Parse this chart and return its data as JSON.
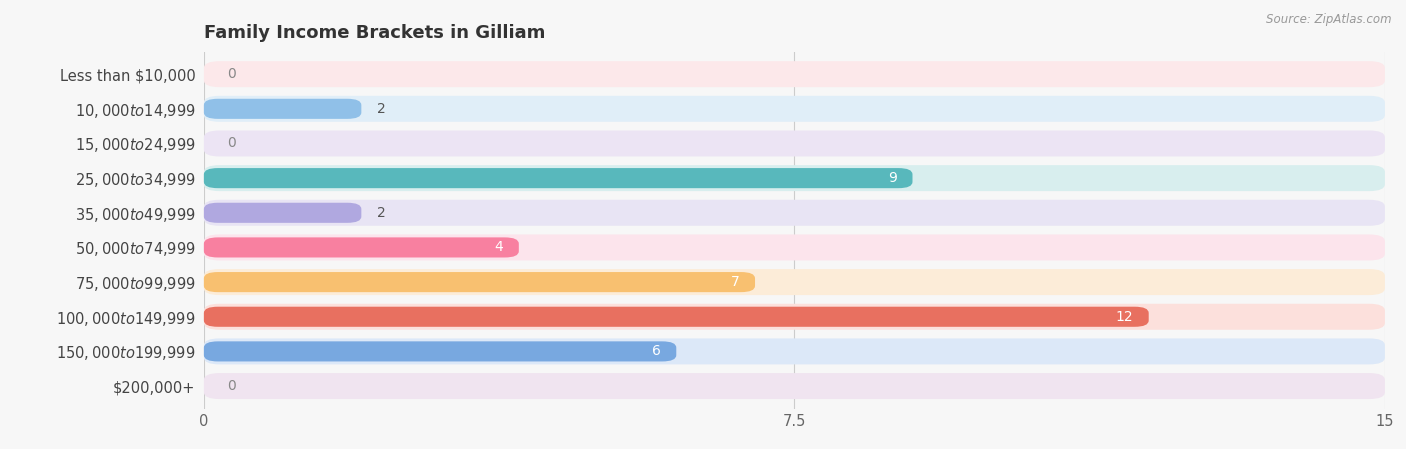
{
  "title": "Family Income Brackets in Gilliam",
  "source": "Source: ZipAtlas.com",
  "categories": [
    "Less than $10,000",
    "$10,000 to $14,999",
    "$15,000 to $24,999",
    "$25,000 to $34,999",
    "$35,000 to $49,999",
    "$50,000 to $74,999",
    "$75,000 to $99,999",
    "$100,000 to $149,999",
    "$150,000 to $199,999",
    "$200,000+"
  ],
  "values": [
    0,
    2,
    0,
    9,
    2,
    4,
    7,
    12,
    6,
    0
  ],
  "bar_colors": [
    "#f0a0a8",
    "#90c0e8",
    "#c0a0d8",
    "#58b8bc",
    "#b0a8e0",
    "#f880a0",
    "#f8c070",
    "#e87060",
    "#78a8e0",
    "#d0b0d0"
  ],
  "bar_bg_colors": [
    "#fce8ea",
    "#e0eef8",
    "#ece4f4",
    "#d8eeee",
    "#e8e4f4",
    "#fce4ec",
    "#fcecd8",
    "#fce0dc",
    "#dce8f8",
    "#f0e4f0"
  ],
  "xlim": [
    0,
    15
  ],
  "xticks": [
    0,
    7.5,
    15
  ],
  "background_color": "#f7f7f7",
  "title_fontsize": 13,
  "label_fontsize": 10.5,
  "value_fontsize": 10
}
